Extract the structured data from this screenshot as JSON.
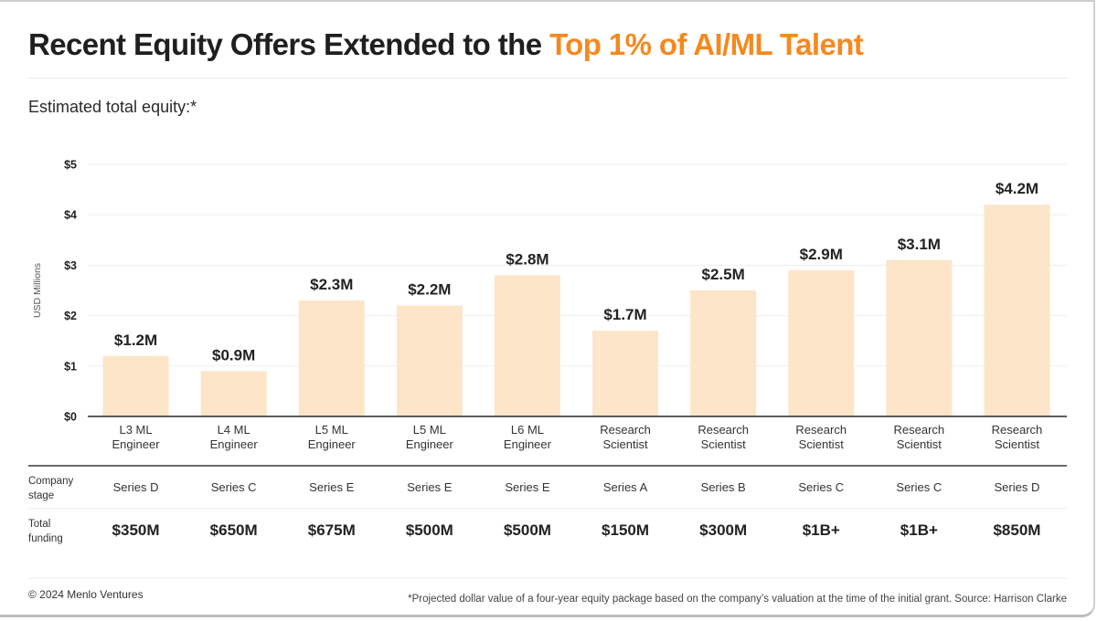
{
  "header": {
    "title_prefix": "Recent Equity Offers Extended to the",
    "title_highlight": "Top 1% of AI/ML Talent",
    "subtitle": "Estimated total equity:*"
  },
  "colors": {
    "accent": "#f5891f",
    "bar": "#fde5c9",
    "text": "#222222"
  },
  "chart_data": {
    "type": "bar",
    "title": "Recent Equity Offers Extended to the Top 1% of AI/ML Talent",
    "subtitle": "Estimated total equity:*",
    "xlabel": "",
    "ylabel": "USD Millions",
    "ylim": [
      0,
      5
    ],
    "grid": true,
    "yticks": [
      0,
      1,
      2,
      3,
      4,
      5
    ],
    "ytick_labels": [
      "$0",
      "$1",
      "$2",
      "$3",
      "$4",
      "$5"
    ],
    "categories": [
      [
        "L3 ML",
        "Engineer"
      ],
      [
        "L4 ML",
        "Engineer"
      ],
      [
        "L5 ML",
        "Engineer"
      ],
      [
        "L5 ML",
        "Engineer"
      ],
      [
        "L6 ML",
        "Engineer"
      ],
      [
        "Research",
        "Scientist"
      ],
      [
        "Research",
        "Scientist"
      ],
      [
        "Research",
        "Scientist"
      ],
      [
        "Research",
        "Scientist"
      ],
      [
        "Research",
        "Scientist"
      ]
    ],
    "values": [
      1.2,
      0.9,
      2.3,
      2.2,
      2.8,
      1.7,
      2.5,
      2.9,
      3.1,
      4.2
    ],
    "value_labels": [
      "$1.2M",
      "$0.9M",
      "$2.3M",
      "$2.2M",
      "$2.8M",
      "$1.7M",
      "$2.5M",
      "$2.9M",
      "$3.1M",
      "$4.2M"
    ]
  },
  "table": {
    "company_stage_label": [
      "Company",
      "stage"
    ],
    "total_funding_label": [
      "Total",
      "funding"
    ],
    "company_stage": [
      "Series D",
      "Series C",
      "Series E",
      "Series E",
      "Series E",
      "Series A",
      "Series B",
      "Series C",
      "Series C",
      "Series D"
    ],
    "total_funding": [
      "$350M",
      "$650M",
      "$675M",
      "$500M",
      "$500M",
      "$150M",
      "$300M",
      "$1B+",
      "$1B+",
      "$850M"
    ]
  },
  "footer": {
    "copyright": "© 2024 Menlo Ventures",
    "note": "*Projected dollar value of a four-year equity package based on the company’s valuation at the time of the initial grant. Source: Harrison Clarke"
  }
}
